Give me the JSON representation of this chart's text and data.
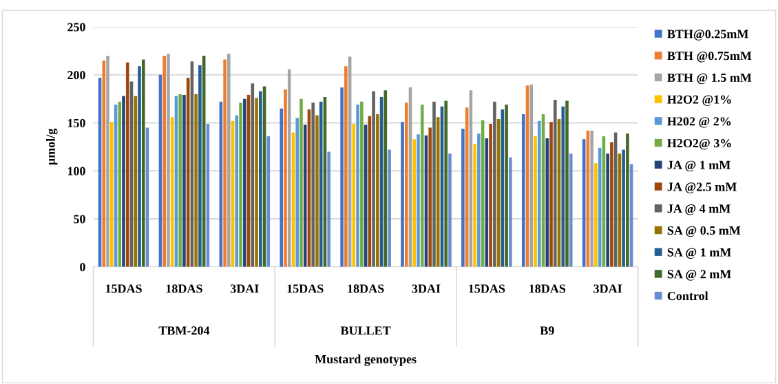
{
  "chart_data": {
    "type": "bar",
    "ylabel": "µmol/g",
    "xlabel": "Mustard genotypes",
    "categories": [
      "15DAS",
      "18DAS",
      "3DAI",
      "15DAS",
      "18DAS",
      "3DAI",
      "15DAS",
      "18DAS",
      "3DAI"
    ],
    "annotations": [
      "TBM-204",
      "BULLET",
      "B9"
    ],
    "ylim": [
      0,
      250
    ],
    "yticks": [
      0,
      50,
      100,
      150,
      200,
      250
    ],
    "grid": "y",
    "legend": "right",
    "series": [
      {
        "name": "BTH@0.25mM",
        "color": "#4472c4",
        "values": [
          197,
          200,
          172,
          165,
          187,
          151,
          144,
          159,
          133
        ]
      },
      {
        "name": "BTH @0.75mM",
        "color": "#ed7d31",
        "values": [
          215,
          220,
          216,
          185,
          209,
          171,
          166,
          189,
          142
        ]
      },
      {
        "name": "BTH @ 1.5 mM",
        "color": "#a5a5a5",
        "values": [
          220,
          222,
          222,
          206,
          219,
          187,
          184,
          190,
          142
        ]
      },
      {
        "name": "H2O2 @1%",
        "color": "#ffc000",
        "values": [
          151,
          156,
          152,
          140,
          149,
          133,
          128,
          136,
          108
        ]
      },
      {
        "name": "H202 @ 2%",
        "color": "#5b9bd5",
        "values": [
          169,
          178,
          158,
          155,
          169,
          138,
          139,
          152,
          124
        ]
      },
      {
        "name": "H2O2@ 3%",
        "color": "#70ad47",
        "values": [
          172,
          180,
          171,
          175,
          172,
          169,
          153,
          159,
          136
        ]
      },
      {
        "name": "JA @ 1 mM",
        "color": "#264478",
        "values": [
          178,
          179,
          175,
          148,
          148,
          137,
          134,
          134,
          118
        ]
      },
      {
        "name": "JA @2.5 mM",
        "color": "#9e480e",
        "values": [
          213,
          197,
          179,
          164,
          157,
          145,
          149,
          151,
          130
        ]
      },
      {
        "name": "JA @ 4 mM",
        "color": "#636363",
        "values": [
          193,
          214,
          191,
          171,
          183,
          172,
          172,
          174,
          140
        ]
      },
      {
        "name": "SA @ 0.5 mM",
        "color": "#997300",
        "values": [
          178,
          180,
          176,
          158,
          159,
          156,
          154,
          154,
          118
        ]
      },
      {
        "name": "SA @ 1 mM",
        "color": "#255e91",
        "values": [
          209,
          210,
          183,
          172,
          177,
          167,
          164,
          167,
          122
        ]
      },
      {
        "name": "SA @ 2 mM",
        "color": "#43682b",
        "values": [
          216,
          220,
          188,
          177,
          184,
          173,
          169,
          173,
          139
        ]
      },
      {
        "name": "Control",
        "color": "#698ed0",
        "values": [
          145,
          149,
          136,
          120,
          122,
          118,
          114,
          118,
          107
        ]
      }
    ]
  }
}
